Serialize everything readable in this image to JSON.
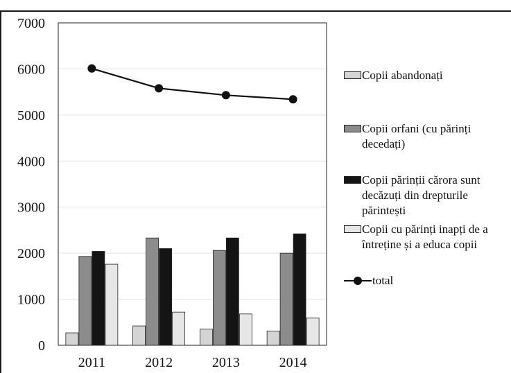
{
  "chart_data": {
    "type": "bar",
    "categories": [
      "2011",
      "2012",
      "2013",
      "2014"
    ],
    "series": [
      {
        "name": "Copii abandonați",
        "type": "bar",
        "color": "#d4d4d4",
        "values": [
          270,
          420,
          350,
          310
        ]
      },
      {
        "name": "Copii orfani (cu părinți decedați)",
        "type": "bar",
        "color": "#8c8c8c",
        "values": [
          1930,
          2330,
          2060,
          2000
        ]
      },
      {
        "name": "Copii părinții cărora sunt decăzuți din drepturile părintești",
        "type": "bar",
        "color": "#141414",
        "values": [
          2040,
          2100,
          2330,
          2420
        ]
      },
      {
        "name": "Copii cu părinți inapți de a întreține și a educa copii",
        "type": "bar",
        "color": "#e6e6e6",
        "values": [
          1760,
          720,
          680,
          590
        ]
      },
      {
        "name": "total",
        "type": "line",
        "color": "#111111",
        "values": [
          6010,
          5580,
          5430,
          5340
        ]
      }
    ],
    "ylim": [
      0,
      7000
    ],
    "yticks": [
      "0",
      "1000",
      "2000",
      "3000",
      "4000",
      "5000",
      "6000",
      "7000"
    ],
    "grid": true,
    "legend_position": "right",
    "title": "",
    "xlabel": "",
    "ylabel": ""
  },
  "legend": {
    "items": [
      "Copii abandonați",
      "Copii orfani (cu părinți decedați)",
      "Copii părinții cărora sunt decăzuți din drepturile părintești",
      "Copii cu părinți inapți de a întreține și a educa copii",
      "total"
    ]
  }
}
